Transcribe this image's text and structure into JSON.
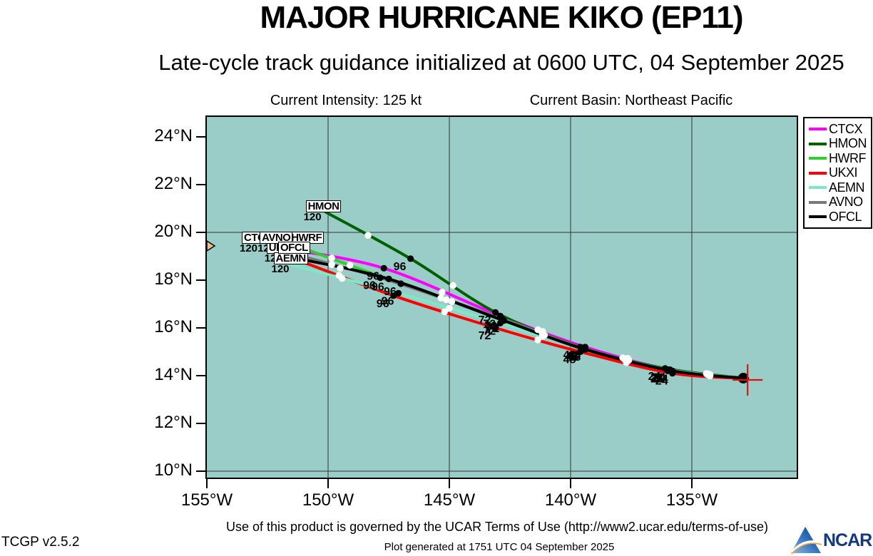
{
  "header": {
    "title": "MAJOR HURRICANE KIKO (EP11)",
    "subtitle": "Late-cycle track guidance initialized at 0600 UTC, 04 September 2025",
    "intensity_label": "Current Intensity: 125 kt",
    "basin_label": "Current Basin: Northeast Pacific"
  },
  "footer": {
    "terms": "Use of this product is governed by the UCAR Terms of Use (http://www2.ucar.edu/terms-of-use)",
    "generated": "Plot generated at 1751 UTC   04 September 2025",
    "version": "TCGP v2.5.2",
    "logo_text": "NCAR"
  },
  "chart_data": {
    "type": "line",
    "title": "MAJOR HURRICANE KIKO (EP11)",
    "subtitle": "Late-cycle track guidance initialized at 0600 UTC, 04 September 2025",
    "x_axis_ticks": [
      {
        "label": "155°W",
        "value": 155
      },
      {
        "label": "150°W",
        "value": 150
      },
      {
        "label": "145°W",
        "value": 145
      },
      {
        "label": "140°W",
        "value": 140
      },
      {
        "label": "135°W",
        "value": 135
      }
    ],
    "y_axis_ticks": [
      {
        "label": "24°N",
        "value": 24
      },
      {
        "label": "22°N",
        "value": 22
      },
      {
        "label": "20°N",
        "value": 20
      },
      {
        "label": "18°N",
        "value": 18
      },
      {
        "label": "16°N",
        "value": 16
      },
      {
        "label": "14°N",
        "value": 14
      },
      {
        "label": "12°N",
        "value": 12
      },
      {
        "label": "10°N",
        "value": 10
      }
    ],
    "x_range_lon_w": [
      155.0,
      130.7
    ],
    "y_range_lat_n": [
      9.7,
      24.8
    ],
    "grid": true,
    "legend_position": "outside-top-right",
    "forecast_hours": [
      0,
      24,
      48,
      72,
      96,
      120
    ],
    "marker_interval_black_h": 24,
    "marker_interval_white_h": 12,
    "initial_point": {
      "lon_w": 132.7,
      "lat_n": 13.88,
      "marker": "red-crosshair"
    },
    "end_hour_label": "120",
    "series": [
      {
        "name": "CTCX",
        "color": "#FF00FF",
        "track": [
          [
            132.7,
            13.88
          ],
          [
            135.9,
            14.25
          ],
          [
            139.4,
            15.2
          ],
          [
            142.9,
            16.5
          ],
          [
            147.7,
            18.5
          ],
          [
            152.0,
            19.35
          ]
        ]
      },
      {
        "name": "HMON",
        "color": "#006000",
        "track": [
          [
            132.7,
            13.88
          ],
          [
            136.1,
            14.3
          ],
          [
            139.6,
            15.2
          ],
          [
            143.1,
            16.65
          ],
          [
            146.6,
            18.9
          ],
          [
            150.1,
            20.85
          ]
        ]
      },
      {
        "name": "HWRF",
        "color": "#32CD32",
        "track": [
          [
            132.7,
            13.88
          ],
          [
            136.0,
            14.2
          ],
          [
            139.5,
            15.1
          ],
          [
            142.8,
            16.35
          ],
          [
            147.0,
            17.85
          ],
          [
            151.2,
            19.4
          ]
        ]
      },
      {
        "name": "UKXI",
        "color": "#FF0000",
        "track": [
          [
            132.7,
            13.88
          ],
          [
            135.8,
            14.1
          ],
          [
            139.6,
            15.0
          ],
          [
            143.1,
            16.0
          ],
          [
            147.3,
            17.35
          ],
          [
            151.8,
            19.05
          ]
        ]
      },
      {
        "name": "AEMN",
        "color": "#7CE8C6",
        "track": [
          [
            132.7,
            13.88
          ],
          [
            136.0,
            14.25
          ],
          [
            139.4,
            15.1
          ],
          [
            142.9,
            16.2
          ],
          [
            147.1,
            17.45
          ],
          [
            151.75,
            18.7
          ]
        ]
      },
      {
        "name": "AVNO",
        "color": "#7A7A7A",
        "track": [
          [
            132.7,
            13.88
          ],
          [
            135.9,
            14.22
          ],
          [
            139.5,
            15.15
          ],
          [
            142.85,
            16.4
          ],
          [
            147.85,
            18.1
          ],
          [
            151.85,
            19.2
          ]
        ]
      },
      {
        "name": "OFCL",
        "color": "#000000",
        "track": [
          [
            132.7,
            13.88
          ],
          [
            135.8,
            14.2
          ],
          [
            139.4,
            15.1
          ],
          [
            142.75,
            16.3
          ],
          [
            147.5,
            18.05
          ],
          [
            151.5,
            18.95
          ]
        ]
      }
    ],
    "colors": {
      "sea": "#9BCDC8",
      "land": "#E9C190",
      "grid": "#333333",
      "crosshair": "#E01010"
    }
  }
}
